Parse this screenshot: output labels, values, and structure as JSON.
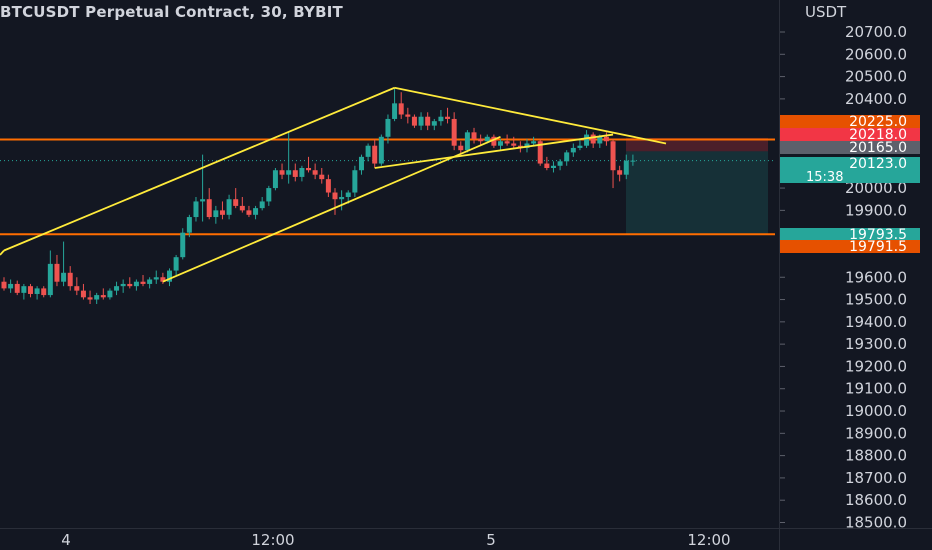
{
  "chart_data": {
    "type": "candlestick",
    "title": "BTCUSDT Perpetual Contract, 30, BYBIT",
    "y_axis": {
      "unit": "USDT",
      "ticks": [
        20700,
        20600,
        20500,
        20400,
        20000,
        19900,
        19600,
        19500,
        19400,
        19300,
        19200,
        19100,
        19000,
        18900,
        18800,
        18700,
        18600,
        18500
      ],
      "range": [
        18470,
        20800
      ]
    },
    "x_axis": {
      "tick_labels": [
        "4",
        "12:00",
        "5",
        "12:00"
      ]
    },
    "price_labels": [
      {
        "value": "20225.0",
        "color": "#e65100"
      },
      {
        "value": "20218.0",
        "color": "#f23645"
      },
      {
        "value": "20165.0",
        "color": "#5d606b"
      },
      {
        "value": "20123.0",
        "sub": "15:38",
        "color": "#26a69a"
      },
      {
        "value": "19793.5",
        "color": "#26a69a"
      },
      {
        "value": "19791.5",
        "color": "#e65100"
      }
    ],
    "horizontal_lines": [
      {
        "price": 20218,
        "color": "#ff6d00"
      },
      {
        "price": 19793,
        "color": "#ff6d00"
      }
    ],
    "current_price_line": 20123,
    "position": {
      "entry": 20165,
      "stop": 20225,
      "target": 19793
    },
    "colors": {
      "up": "#26a69a",
      "down": "#ef5350",
      "trendline": "#ffeb3b",
      "background": "#131722"
    },
    "candles": [
      [
        19580,
        19600,
        19540,
        19550
      ],
      [
        19550,
        19590,
        19530,
        19570
      ],
      [
        19570,
        19585,
        19520,
        19530
      ],
      [
        19530,
        19570,
        19500,
        19560
      ],
      [
        19560,
        19570,
        19510,
        19525
      ],
      [
        19525,
        19560,
        19500,
        19550
      ],
      [
        19550,
        19560,
        19510,
        19520
      ],
      [
        19520,
        19720,
        19510,
        19660
      ],
      [
        19660,
        19700,
        19560,
        19580
      ],
      [
        19580,
        19760,
        19560,
        19620
      ],
      [
        19620,
        19650,
        19540,
        19560
      ],
      [
        19560,
        19600,
        19520,
        19540
      ],
      [
        19540,
        19570,
        19500,
        19510
      ],
      [
        19510,
        19540,
        19480,
        19500
      ],
      [
        19500,
        19530,
        19480,
        19520
      ],
      [
        19520,
        19550,
        19500,
        19510
      ],
      [
        19510,
        19550,
        19500,
        19540
      ],
      [
        19540,
        19580,
        19520,
        19560
      ],
      [
        19560,
        19590,
        19530,
        19570
      ],
      [
        19570,
        19600,
        19550,
        19560
      ],
      [
        19560,
        19590,
        19540,
        19580
      ],
      [
        19580,
        19610,
        19560,
        19570
      ],
      [
        19570,
        19600,
        19550,
        19590
      ],
      [
        19590,
        19630,
        19570,
        19600
      ],
      [
        19600,
        19620,
        19570,
        19580
      ],
      [
        19580,
        19640,
        19560,
        19630
      ],
      [
        19630,
        19700,
        19610,
        19690
      ],
      [
        19690,
        19820,
        19680,
        19800
      ],
      [
        19800,
        19880,
        19780,
        19870
      ],
      [
        19870,
        19960,
        19850,
        19940
      ],
      [
        19940,
        20150,
        19850,
        19950
      ],
      [
        19950,
        20000,
        19860,
        19870
      ],
      [
        19870,
        19920,
        19840,
        19900
      ],
      [
        19900,
        19940,
        19860,
        19880
      ],
      [
        19880,
        19970,
        19860,
        19950
      ],
      [
        19950,
        20000,
        19910,
        19920
      ],
      [
        19920,
        19960,
        19890,
        19900
      ],
      [
        19900,
        19920,
        19870,
        19880
      ],
      [
        19880,
        19920,
        19860,
        19910
      ],
      [
        19910,
        19960,
        19900,
        19940
      ],
      [
        19940,
        20010,
        19920,
        20000
      ],
      [
        20000,
        20090,
        19990,
        20080
      ],
      [
        20080,
        20110,
        20040,
        20060
      ],
      [
        20060,
        20250,
        20020,
        20080
      ],
      [
        20080,
        20110,
        20030,
        20050
      ],
      [
        20050,
        20100,
        20030,
        20090
      ],
      [
        20090,
        20140,
        20070,
        20080
      ],
      [
        20080,
        20110,
        20040,
        20060
      ],
      [
        20060,
        20090,
        20020,
        20040
      ],
      [
        20040,
        20060,
        19960,
        19980
      ],
      [
        19980,
        20000,
        19880,
        19950
      ],
      [
        19950,
        19990,
        19900,
        19960
      ],
      [
        19960,
        19990,
        19930,
        19980
      ],
      [
        19980,
        20100,
        19960,
        20080
      ],
      [
        20080,
        20150,
        20060,
        20140
      ],
      [
        20140,
        20200,
        20120,
        20190
      ],
      [
        20190,
        20220,
        20090,
        20110
      ],
      [
        20110,
        20240,
        20100,
        20230
      ],
      [
        20230,
        20330,
        20200,
        20310
      ],
      [
        20310,
        20450,
        20300,
        20380
      ],
      [
        20380,
        20430,
        20310,
        20330
      ],
      [
        20330,
        20360,
        20290,
        20320
      ],
      [
        20320,
        20330,
        20270,
        20280
      ],
      [
        20280,
        20340,
        20260,
        20320
      ],
      [
        20320,
        20340,
        20260,
        20280
      ],
      [
        20280,
        20310,
        20260,
        20300
      ],
      [
        20300,
        20350,
        20280,
        20320
      ],
      [
        20320,
        20360,
        20290,
        20310
      ],
      [
        20310,
        20340,
        20170,
        20190
      ],
      [
        20190,
        20210,
        20150,
        20170
      ],
      [
        20170,
        20260,
        20160,
        20250
      ],
      [
        20250,
        20270,
        20200,
        20220
      ],
      [
        20220,
        20240,
        20190,
        20210
      ],
      [
        20210,
        20240,
        20200,
        20230
      ],
      [
        20230,
        20240,
        20180,
        20190
      ],
      [
        20190,
        20220,
        20170,
        20210
      ],
      [
        20210,
        20240,
        20190,
        20200
      ],
      [
        20200,
        20230,
        20180,
        20190
      ],
      [
        20190,
        20210,
        20160,
        20180
      ],
      [
        20180,
        20220,
        20160,
        20200
      ],
      [
        20200,
        20230,
        20190,
        20210
      ],
      [
        20210,
        20220,
        20100,
        20110
      ],
      [
        20110,
        20140,
        20080,
        20090
      ],
      [
        20090,
        20120,
        20070,
        20100
      ],
      [
        20100,
        20130,
        20080,
        20120
      ],
      [
        20120,
        20170,
        20100,
        20160
      ],
      [
        20160,
        20200,
        20140,
        20180
      ],
      [
        20180,
        20220,
        20170,
        20190
      ],
      [
        20190,
        20260,
        20180,
        20240
      ],
      [
        20240,
        20250,
        20180,
        20200
      ],
      [
        20200,
        20240,
        20180,
        20230
      ],
      [
        20230,
        20250,
        20190,
        20210
      ],
      [
        20210,
        20220,
        20000,
        20080
      ],
      [
        20080,
        20100,
        20030,
        20060
      ],
      [
        20060,
        20150,
        20040,
        20123
      ],
      [
        20123,
        20150,
        20100,
        20123
      ]
    ],
    "trendlines": [
      {
        "from": [
          0,
          19720
        ],
        "to": [
          59,
          20450
        ]
      },
      {
        "from": [
          24,
          19580
        ],
        "to": [
          75,
          20230
        ]
      },
      {
        "from": [
          59,
          20450
        ],
        "to": [
          100,
          20200
        ]
      },
      {
        "from": [
          56,
          20090
        ],
        "to": [
          92,
          20240
        ]
      }
    ]
  }
}
